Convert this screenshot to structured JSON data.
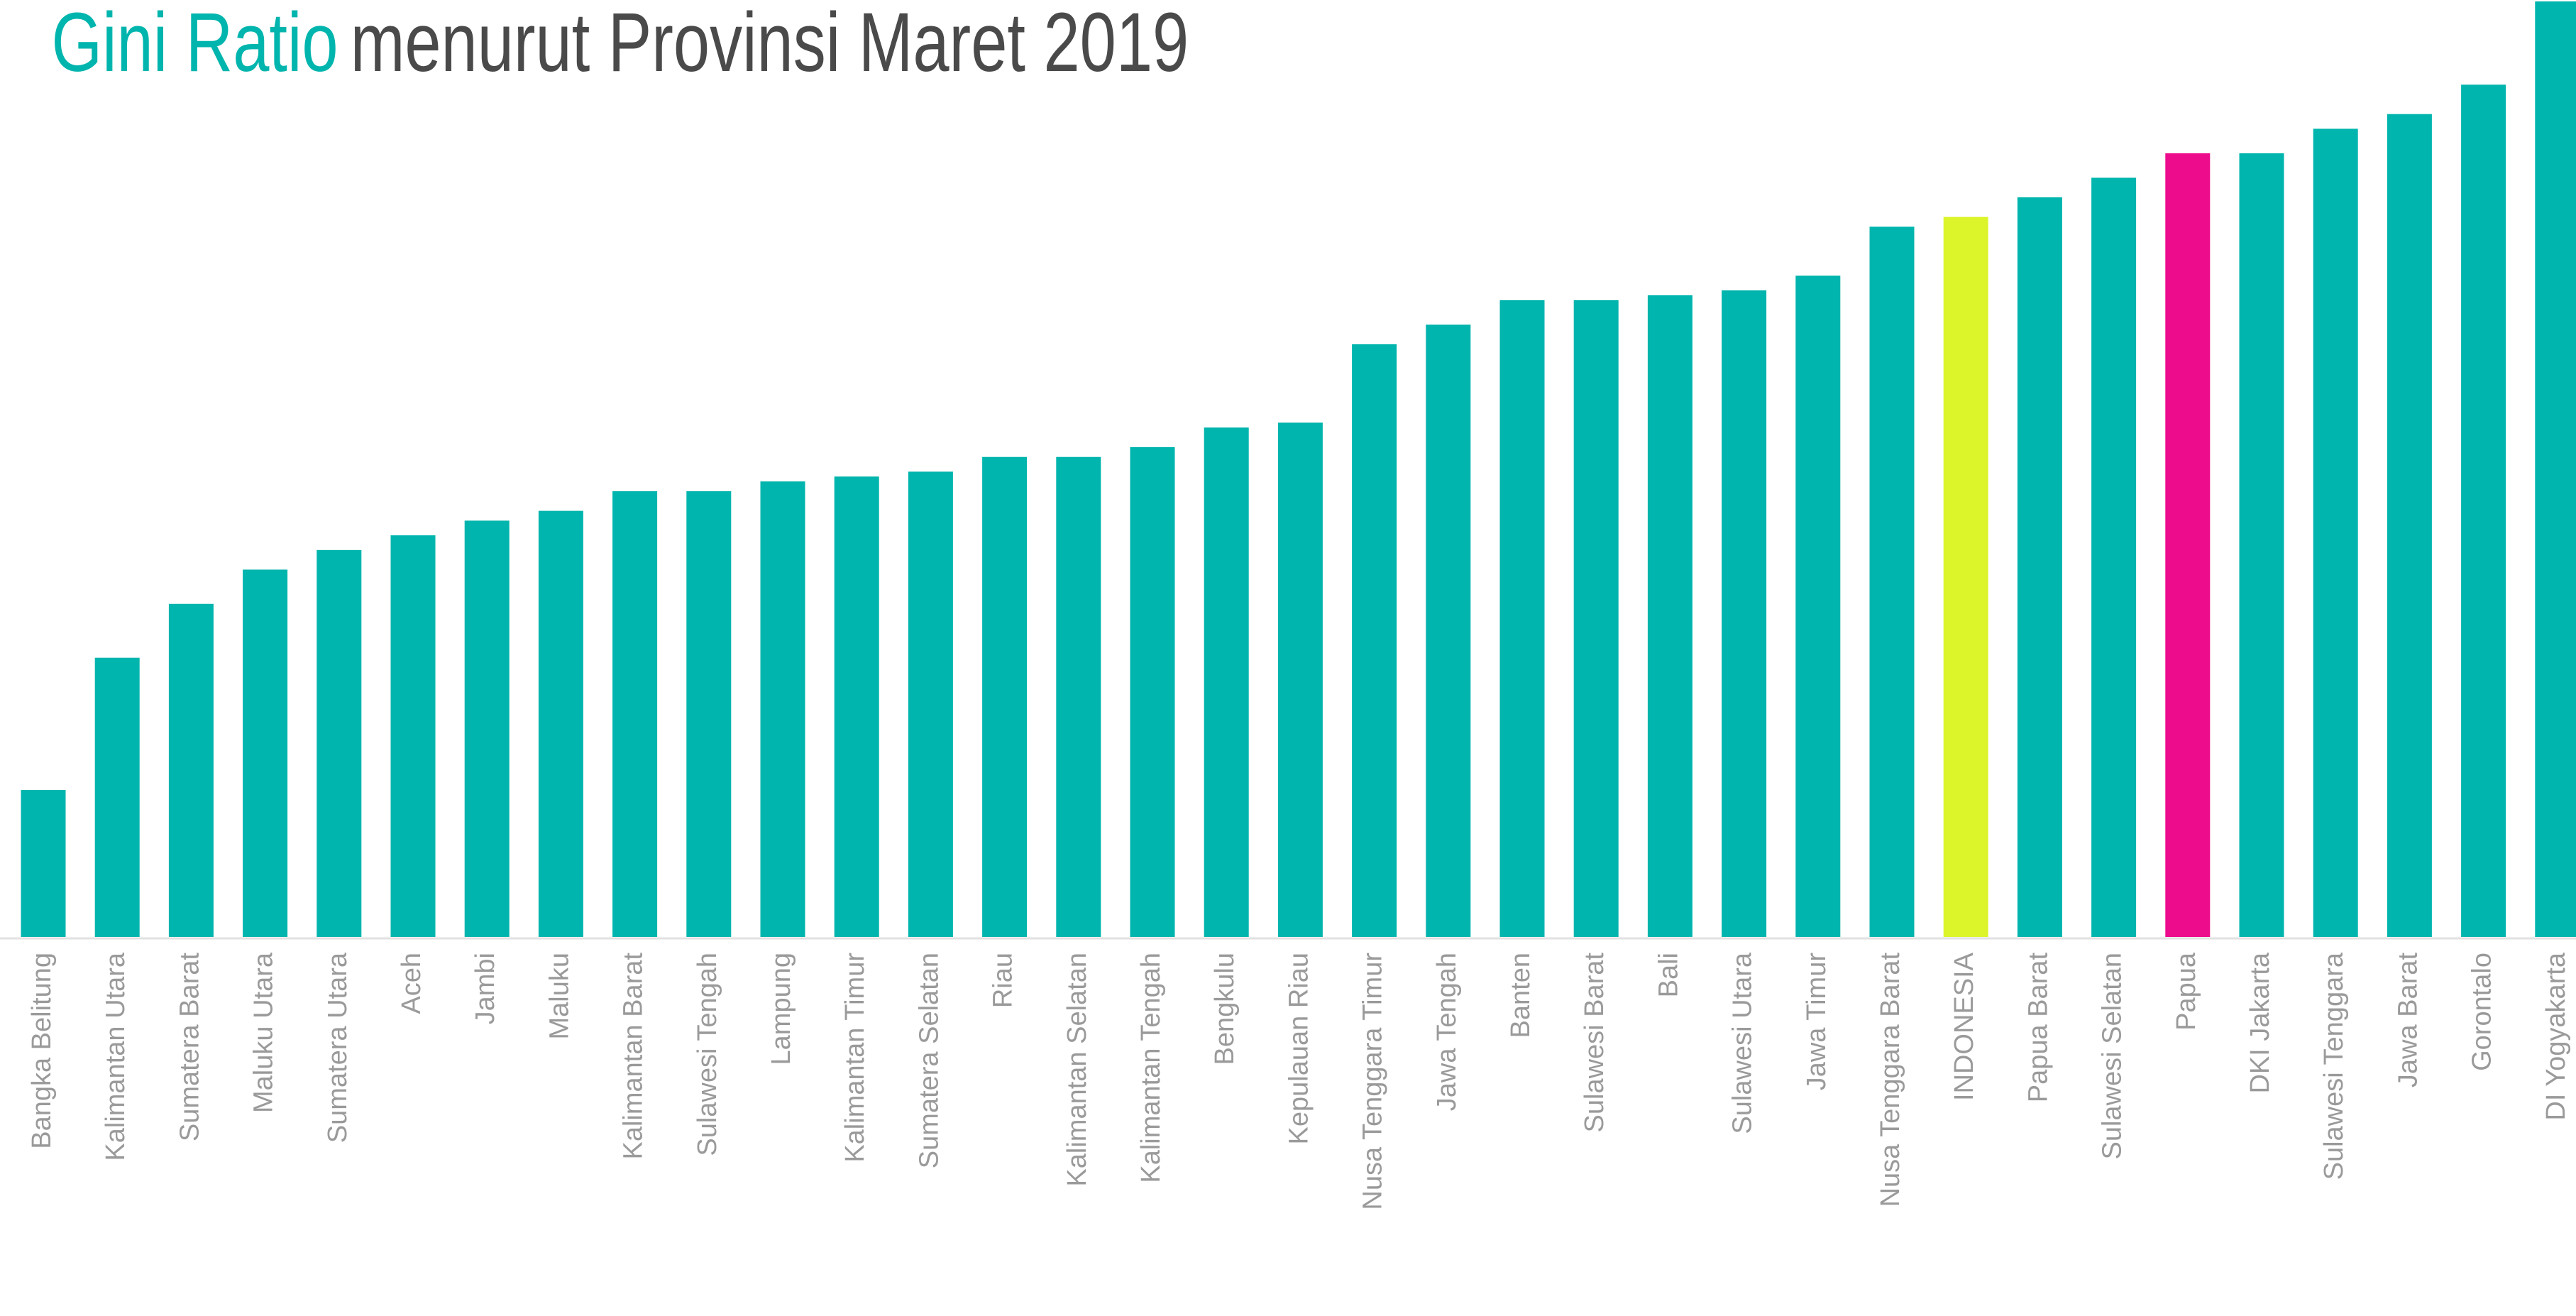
{
  "chart_data": {
    "type": "bar",
    "title_highlight": "Gini Ratio",
    "title": "menurut Provinsi Maret 2019",
    "categories": [
      "Bangka Belitung",
      "Kalimantan Utara",
      "Sumatera Barat",
      "Maluku Utara",
      "Sumatera Utara",
      "Aceh",
      "Jambi",
      "Maluku",
      "Kalimantan Barat",
      "Sulawesi Tengah",
      "Lampung",
      "Kalimantan Timur",
      "Sumatera Selatan",
      "Riau",
      "Kalimantan Selatan",
      "Kalimantan Tengah",
      "Bengkulu",
      "Kepulauan Riau",
      "Nusa Tenggara Timur",
      "Jawa Tengah",
      "Banten",
      "Sulawesi Barat",
      "Bali",
      "Sulawesi Utara",
      "Jawa Timur",
      "Nusa Tenggara Barat",
      "INDONESIA",
      "Papua Barat",
      "Sulawesi Selatan",
      "Papua",
      "DKI Jakarta",
      "Sulawesi Tenggara",
      "Jawa Barat",
      "Gorontalo",
      "DI Yogyakarta"
    ],
    "values": [
      0.262,
      0.289,
      0.3,
      0.307,
      0.311,
      0.314,
      0.317,
      0.319,
      0.323,
      0.323,
      0.325,
      0.326,
      0.327,
      0.33,
      0.33,
      0.332,
      0.336,
      0.337,
      0.353,
      0.357,
      0.362,
      0.362,
      0.363,
      0.364,
      0.367,
      0.377,
      0.379,
      0.383,
      0.387,
      0.392,
      0.392,
      0.397,
      0.4,
      0.406,
      0.423
    ],
    "colors": [
      "#00b5ad",
      "#00b5ad",
      "#00b5ad",
      "#00b5ad",
      "#00b5ad",
      "#00b5ad",
      "#00b5ad",
      "#00b5ad",
      "#00b5ad",
      "#00b5ad",
      "#00b5ad",
      "#00b5ad",
      "#00b5ad",
      "#00b5ad",
      "#00b5ad",
      "#00b5ad",
      "#00b5ad",
      "#00b5ad",
      "#00b5ad",
      "#00b5ad",
      "#00b5ad",
      "#00b5ad",
      "#00b5ad",
      "#00b5ad",
      "#00b5ad",
      "#00b5ad",
      "#dcf52b",
      "#00b5ad",
      "#00b5ad",
      "#ec0c8c",
      "#00b5ad",
      "#00b5ad",
      "#00b5ad",
      "#00b5ad",
      "#00b5ad"
    ],
    "ylim": [
      0.232,
      0.423
    ]
  }
}
